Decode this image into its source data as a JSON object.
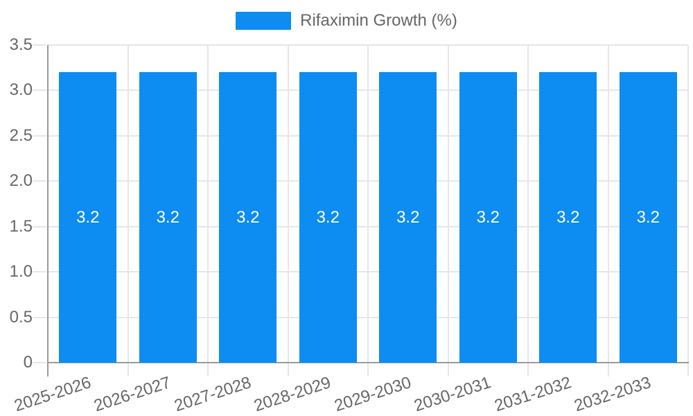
{
  "legend": {
    "label": "Rifaximin Growth (%)"
  },
  "chart_data": {
    "type": "bar",
    "title": "",
    "xlabel": "",
    "ylabel": "",
    "categories": [
      "2025-2026",
      "2026-2027",
      "2027-2028",
      "2028-2029",
      "2029-2030",
      "2030-2031",
      "2031-2032",
      "2032-2033"
    ],
    "series": [
      {
        "name": "Rifaximin Growth (%)",
        "values": [
          3.2,
          3.2,
          3.2,
          3.2,
          3.2,
          3.2,
          3.2,
          3.2
        ]
      }
    ],
    "bar_value_labels": [
      "3.2",
      "3.2",
      "3.2",
      "3.2",
      "3.2",
      "3.2",
      "3.2",
      "3.2"
    ],
    "ylim": [
      0,
      3.5
    ],
    "ytick_step": 0.5,
    "ytick_labels": [
      "0",
      "0.5",
      "1.0",
      "1.5",
      "2.0",
      "2.5",
      "3.0",
      "3.5"
    ],
    "grid": true,
    "legend_position": "top",
    "colors": {
      "bar": "#0d8cf2",
      "grid": "#e6e6e6",
      "axis": "#999999",
      "tick_text": "#666666",
      "value_label": "#ffffff"
    }
  }
}
